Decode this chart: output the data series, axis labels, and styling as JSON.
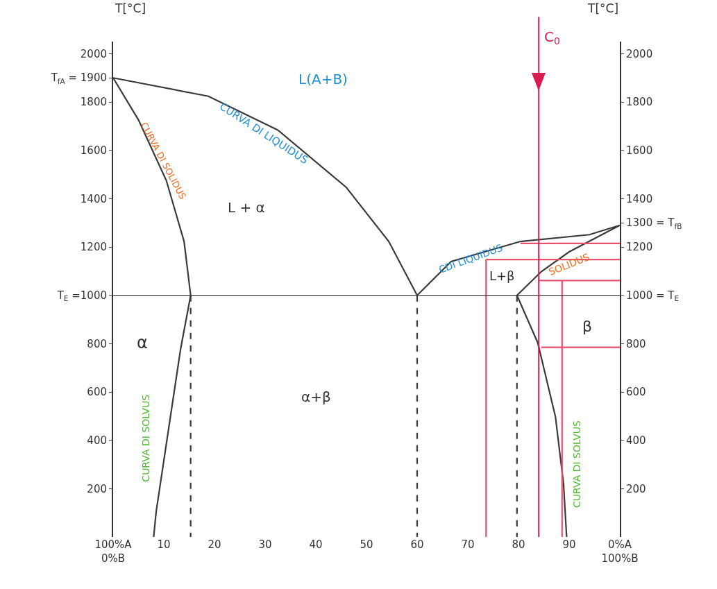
{
  "chart_data": {
    "type": "line",
    "ylabel": "T[°C]",
    "y2label": "T[°C]",
    "xlim": [
      0,
      100
    ],
    "ylim": [
      0,
      2050
    ],
    "y2lim": [
      0,
      2050
    ],
    "xticks": [
      {
        "value": 0,
        "label": "100%A\n0%B"
      },
      10,
      20,
      30,
      40,
      50,
      60,
      70,
      80,
      90,
      {
        "value": 100,
        "label": "0%A\n100%B"
      }
    ],
    "yticks": [
      200,
      400,
      600,
      800,
      {
        "value": 1000,
        "label": "T$_{E}$ =1000"
      },
      1200,
      1400,
      1600,
      1800,
      {
        "value": 1900,
        "label": "T$_{fA}$ = 1900"
      },
      2000
    ],
    "y2ticks": [
      200,
      400,
      600,
      800,
      {
        "value": 1000,
        "label": "1000 = T$_{E}$"
      },
      1200,
      {
        "value": 1300,
        "label": "1300 = T$_{fB}$"
      },
      1400,
      1600,
      1800,
      2000
    ],
    "grid": false,
    "marker": "none",
    "series": [
      {
        "color": "#3a3a3a",
        "line_style": "solid",
        "x": [
          8,
          8.5,
          10.5,
          13.3,
          15.3,
          14,
          10.5,
          5,
          0,
          18.8,
          32.5,
          46,
          54.4,
          60,
          66.7,
          80.4,
          94,
          100,
          90,
          84.5,
          79.7,
          83.8,
          87.3,
          88.9,
          89.5
        ],
        "values": [
          0,
          106,
          385,
          776,
          1000,
          1223,
          1475,
          1726,
          1900,
          1824,
          1684,
          1447,
          1223,
          1000,
          1140,
          1223,
          1251,
          1290,
          1180,
          1098,
          1000,
          804,
          497,
          218,
          0
        ]
      },
      {
        "color": "#3a3a3a",
        "line_style": "dashed",
        "x": [
          15.3,
          15.3,
          null,
          60,
          60,
          null,
          79.7,
          79.7
        ],
        "values": [
          1000,
          0,
          null,
          1000,
          0,
          null,
          1000,
          0
        ]
      },
      {
        "color": "#e8506e",
        "line_style": "solid",
        "axis": "y2",
        "x": [
          73.6,
          73.6,
          null,
          73.6,
          100,
          null,
          80.4,
          100,
          null,
          84,
          100,
          null,
          88.6,
          88.6,
          null,
          84.5,
          100
        ],
        "values": [
          0,
          1148,
          null,
          1148,
          1148,
          null,
          1215,
          1215,
          null,
          1061,
          1061,
          null,
          0,
          1061,
          null,
          785,
          785
        ]
      }
    ],
    "ref_lines": [
      {
        "axis": "y",
        "value": 1000,
        "color": "#3a3a3a"
      },
      {
        "axis": "x",
        "value": 84,
        "label": "C$_{0}$",
        "color": "#d81b50"
      }
    ],
    "annotations": [
      "L(A+B)",
      "CURVA DI LIQUIDUS",
      "CURVA DI SOLIDUS",
      "L + α",
      "CDI LIQUIDUS",
      "L+β",
      "SOLIDUS",
      "α",
      "α+β",
      "β",
      "CURVA DI SOLVUS",
      "CURVA DI SOLVUS"
    ]
  }
}
